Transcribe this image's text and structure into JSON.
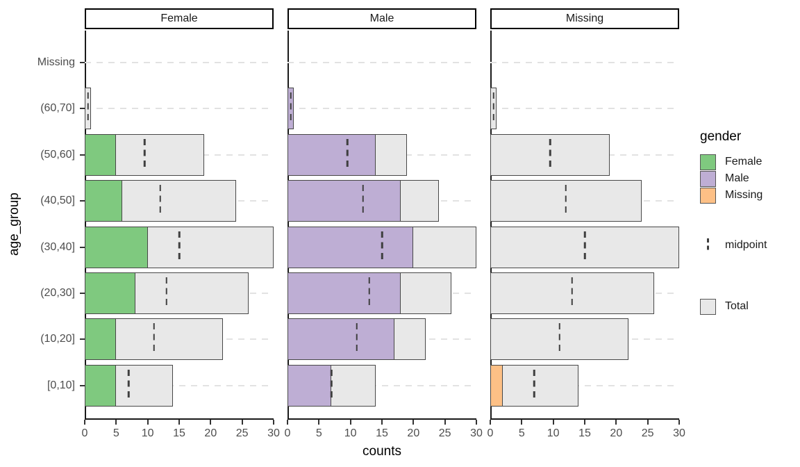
{
  "chart": {
    "x_axis_title": "counts",
    "y_axis_title": "age_group"
  },
  "legend": {
    "title": "gender",
    "gender_items": [
      {
        "label": "Female",
        "color": "#7fc97f"
      },
      {
        "label": "Male",
        "color": "#beaed4"
      },
      {
        "label": "Missing",
        "color": "#fdc086"
      }
    ],
    "midpoint": {
      "label": "midpoint"
    },
    "total": {
      "label": "Total",
      "color": "#e8e8e8"
    }
  },
  "chart_data": {
    "type": "bar",
    "orientation": "horizontal",
    "title": "",
    "xlabel": "counts",
    "ylabel": "age_group",
    "xlim": [
      0,
      30
    ],
    "x_ticks": [
      0,
      5,
      10,
      15,
      20,
      25,
      30
    ],
    "grid": "dashed-horizontal",
    "legend_position": "right",
    "facets": [
      "Female",
      "Male",
      "Missing"
    ],
    "categories_top_to_bottom": [
      "Missing",
      "(60,70]",
      "(50,60]",
      "(40,50]",
      "(30,40]",
      "(20,30]",
      "(10,20]",
      "[0,10]"
    ],
    "totals": [
      0,
      1,
      19,
      24,
      30,
      26,
      22,
      14
    ],
    "midpoints": [
      null,
      0.5,
      9.5,
      12,
      15,
      13,
      11,
      7
    ],
    "series": [
      {
        "name": "Female",
        "color": "#7fc97f",
        "values": [
          0,
          0,
          5,
          6,
          10,
          8,
          5,
          5
        ]
      },
      {
        "name": "Male",
        "color": "#beaed4",
        "values": [
          0,
          1,
          14,
          18,
          20,
          18,
          17,
          7
        ]
      },
      {
        "name": "Missing",
        "color": "#fdc086",
        "values": [
          0,
          0,
          0,
          0,
          0,
          0,
          0,
          2
        ]
      }
    ],
    "total_color": "#e8e8e8",
    "bar_border_color": "#474747",
    "gridline_color": "#e2e2e2",
    "axis_line_color": "#1a1a1a"
  }
}
